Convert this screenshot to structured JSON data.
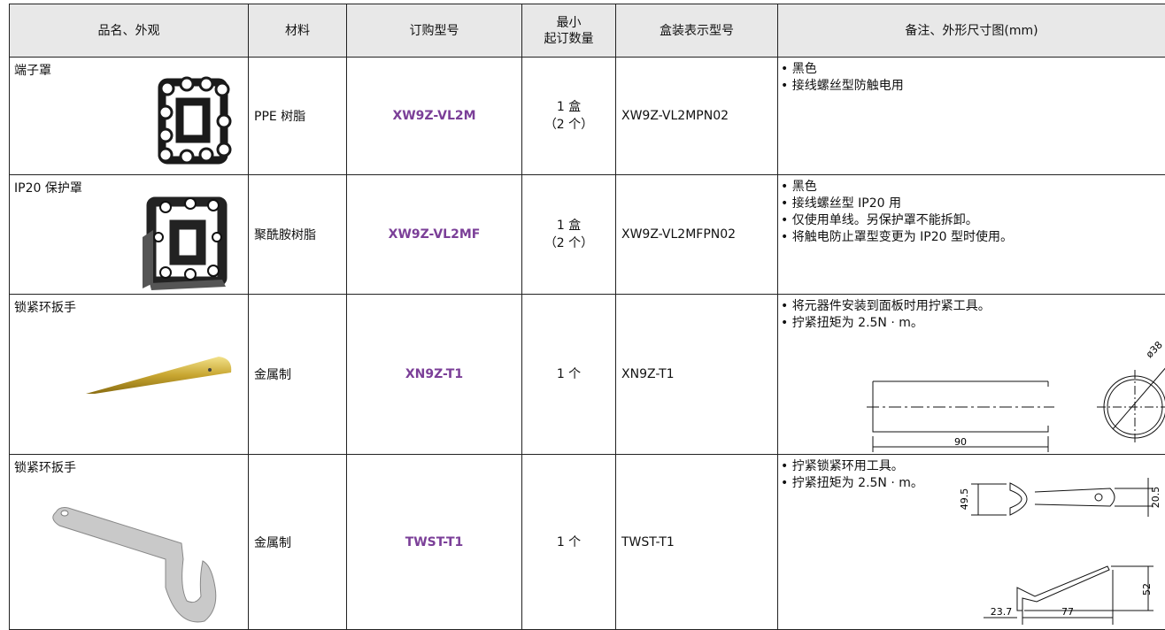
{
  "table": {
    "headers": [
      [
        "品名、外观"
      ],
      [
        "材料"
      ],
      [
        "订购型号"
      ],
      [
        "最小",
        "起订数量"
      ],
      [
        "盒装表示型号"
      ],
      [
        "备注、外形尺寸图(mm)"
      ]
    ],
    "rows": [
      {
        "name": "端子罩",
        "material": "PPE 树脂",
        "order_no": "XW9Z-VL2M",
        "min_qty": [
          "1 盒",
          "（2 个）"
        ],
        "box_no": "XW9Z-VL2MPN02",
        "notes": [
          "• 黑色",
          "• 接线螺丝型防触电用"
        ],
        "dimensions": []
      },
      {
        "name": "IP20 保护罩",
        "material": "聚酰胺树脂",
        "order_no": "XW9Z-VL2MF",
        "min_qty": [
          "1 盒",
          "（2 个）"
        ],
        "box_no": "XW9Z-VL2MFPN02",
        "notes": [
          "• 黑色",
          "• 接线螺丝型 IP20 用",
          "• 仅使用单线。另保护罩不能拆卸。",
          "• 将触电防止罩型变更为 IP20 型时使用。"
        ],
        "dimensions": []
      },
      {
        "name": "锁紧环扳手",
        "material": "金属制",
        "order_no": "XN9Z-T1",
        "min_qty": [
          "1 个"
        ],
        "box_no": "XN9Z-T1",
        "notes": [
          "• 将元器件安装到面板时用拧紧工具。",
          "• 拧紧扭矩为 2.5N · m。"
        ],
        "dimensions": [
          "ø38",
          "90"
        ]
      },
      {
        "name": "锁紧环扳手",
        "material": "金属制",
        "order_no": "TWST-T1",
        "min_qty": [
          "1 个"
        ],
        "box_no": "TWST-T1",
        "notes": [
          "• 拧紧锁紧环用工具。",
          "• 拧紧扭矩为 2.5N · m。"
        ],
        "dimensions": [
          "49.5",
          "20.5",
          "52",
          "23.7",
          "77"
        ]
      }
    ]
  }
}
